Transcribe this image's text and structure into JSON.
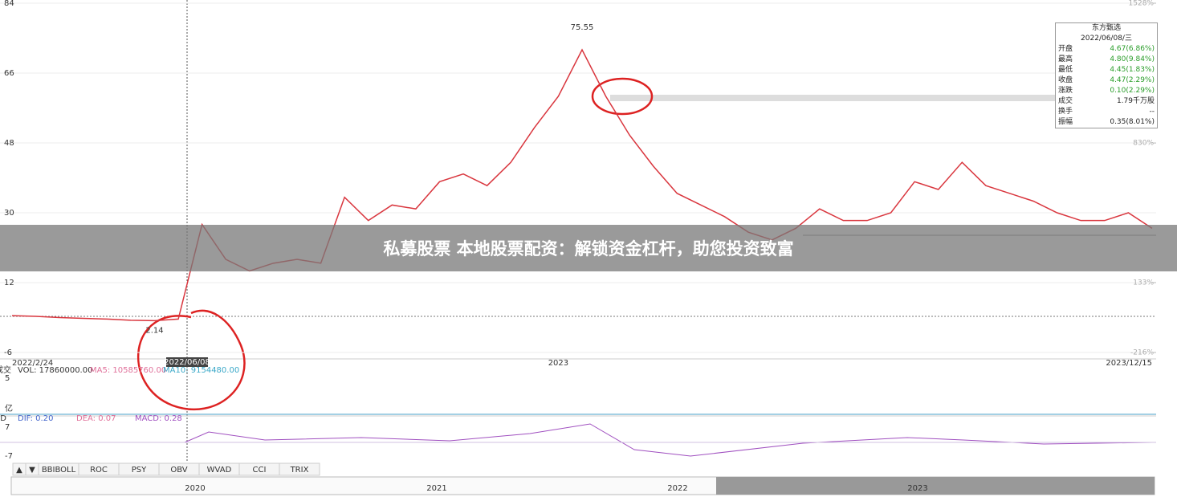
{
  "chart_data": {
    "type": "line",
    "categories": [
      "2022/2/24",
      null,
      null,
      null,
      null,
      null,
      null,
      null,
      null,
      null,
      null,
      null,
      null,
      null,
      null,
      null,
      null,
      null,
      null,
      null,
      null,
      null,
      null,
      "2023",
      null,
      null,
      null,
      null,
      null,
      null,
      null,
      null,
      null,
      null,
      null,
      null,
      null,
      null,
      null,
      null,
      null,
      null,
      null,
      null,
      null,
      null,
      null,
      null,
      "2023/12/15"
    ],
    "values": [
      3.5,
      3.3,
      3.0,
      2.8,
      2.6,
      2.3,
      2.2,
      2.6,
      27,
      18,
      15,
      17,
      18,
      17,
      34,
      28,
      32,
      31,
      38,
      40,
      37,
      43,
      52,
      60,
      72,
      60,
      50,
      42,
      35,
      32,
      29,
      25,
      23,
      26,
      31,
      28,
      28,
      30,
      38,
      36,
      43,
      37,
      35,
      33,
      30,
      28,
      28,
      30,
      26
    ],
    "color": "#d9363e",
    "ylim": [
      -6,
      84
    ],
    "yticks": [
      84,
      66,
      48,
      30,
      12,
      -6
    ],
    "y2lim": [
      -216,
      1528
    ],
    "y2ticks": [
      {
        "value": 1528,
        "label": "1528%"
      },
      {
        "value": 830,
        "label": "830%"
      },
      {
        "value": 133,
        "label": "133%"
      },
      {
        "value": -216,
        "label": "-216%"
      }
    ],
    "annotations": [
      "75.55",
      "2.14"
    ],
    "crosshair_label": "2022/06/08"
  },
  "banner": "私募股票 本地股票配资：解锁资金杠杆，助您投资致富",
  "info_panel": {
    "title": "东方甄选",
    "date": "2022/06/08/三",
    "rows": [
      [
        "开盘",
        "4.67(6.86%)"
      ],
      [
        "最高",
        "4.80(9.84%)"
      ],
      [
        "最低",
        "4.45(1.83%)"
      ],
      [
        "收盘",
        "4.47(2.29%)"
      ],
      [
        "涨跌",
        "0.10(2.29%)"
      ],
      [
        "成交",
        "1.79千万股"
      ],
      [
        "换手",
        "--"
      ],
      [
        "振幅",
        "0.35(8.01%)"
      ]
    ]
  },
  "volume_pane": {
    "labels": [
      "成交",
      "VOL: 17860000.00",
      "MA5: 10585760.00",
      "MA10: 9154480.00"
    ],
    "yticks": [
      "5",
      "亿"
    ]
  },
  "macd_pane": {
    "labels": [
      "MACD",
      "DIF: 0.20",
      "DEA: 0.07",
      "MACD: 0.28"
    ],
    "yticks": [
      "7",
      "-7"
    ]
  },
  "tabs": [
    "▲",
    "▼",
    "BBIBOLL",
    "ROC",
    "PSY",
    "OBV",
    "WVAD",
    "CCI",
    "TRIX"
  ],
  "timeline": [
    "2020",
    "2021",
    "2022",
    "2023"
  ]
}
